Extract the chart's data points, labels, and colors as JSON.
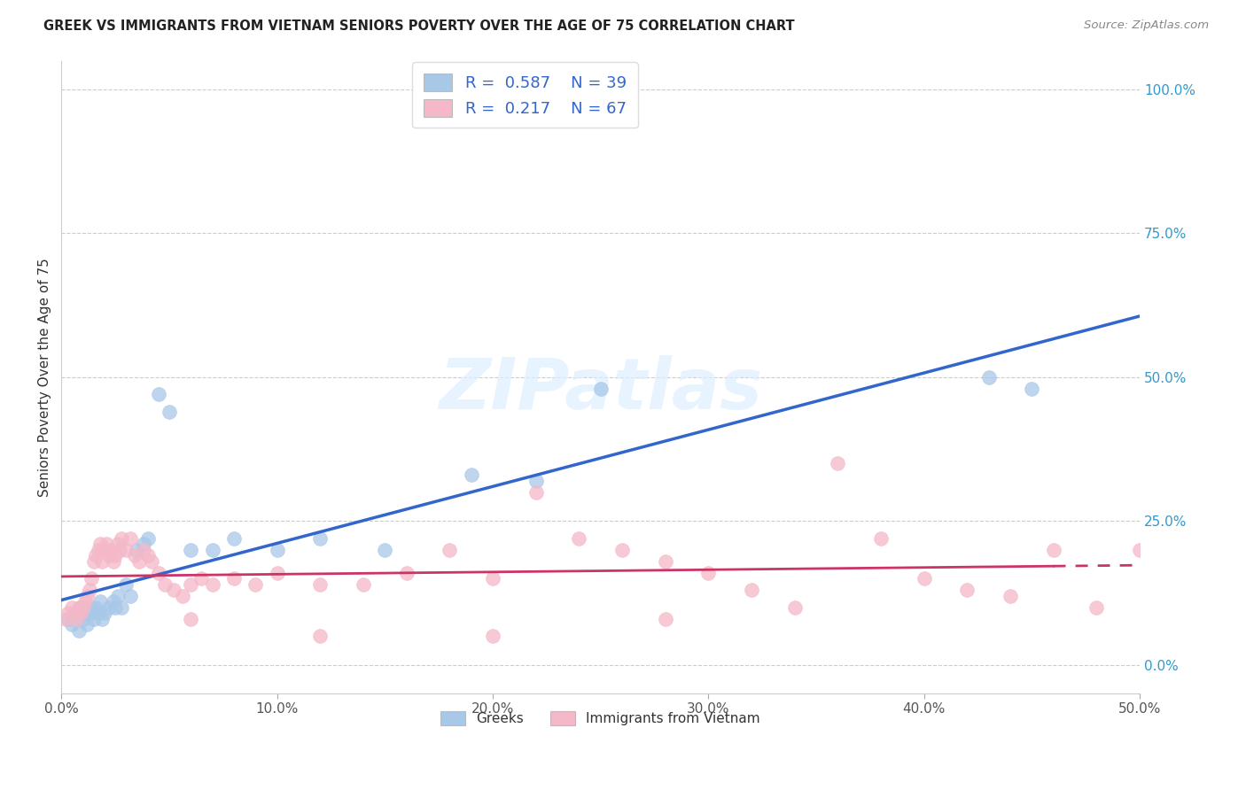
{
  "title": "GREEK VS IMMIGRANTS FROM VIETNAM SENIORS POVERTY OVER THE AGE OF 75 CORRELATION CHART",
  "source": "Source: ZipAtlas.com",
  "ylabel": "Seniors Poverty Over the Age of 75",
  "xlim": [
    0.0,
    0.5
  ],
  "ylim": [
    -0.05,
    1.05
  ],
  "ytick_vals": [
    0.0,
    0.25,
    0.5,
    0.75,
    1.0
  ],
  "xtick_vals": [
    0.0,
    0.1,
    0.2,
    0.3,
    0.4,
    0.5
  ],
  "blue_R": 0.587,
  "blue_N": 39,
  "pink_R": 0.217,
  "pink_N": 67,
  "blue_color": "#a8c8e8",
  "pink_color": "#f4b8c8",
  "blue_line_color": "#3366cc",
  "pink_line_color": "#cc3366",
  "watermark": "ZIPatlas",
  "legend_label_blue": "Greeks",
  "legend_label_pink": "Immigrants from Vietnam",
  "blue_points_x": [
    0.003,
    0.005,
    0.006,
    0.008,
    0.009,
    0.01,
    0.011,
    0.012,
    0.013,
    0.014,
    0.015,
    0.016,
    0.017,
    0.018,
    0.019,
    0.02,
    0.022,
    0.024,
    0.025,
    0.026,
    0.028,
    0.03,
    0.032,
    0.035,
    0.038,
    0.04,
    0.045,
    0.05,
    0.06,
    0.07,
    0.08,
    0.1,
    0.12,
    0.15,
    0.19,
    0.22,
    0.25,
    0.43,
    0.45
  ],
  "blue_points_y": [
    0.08,
    0.07,
    0.09,
    0.06,
    0.1,
    0.08,
    0.09,
    0.07,
    0.1,
    0.09,
    0.08,
    0.1,
    0.09,
    0.11,
    0.08,
    0.09,
    0.1,
    0.11,
    0.1,
    0.12,
    0.1,
    0.14,
    0.12,
    0.2,
    0.21,
    0.22,
    0.47,
    0.44,
    0.2,
    0.2,
    0.22,
    0.2,
    0.22,
    0.2,
    0.33,
    0.32,
    0.48,
    0.5,
    0.48
  ],
  "pink_points_x": [
    0.002,
    0.003,
    0.005,
    0.006,
    0.007,
    0.008,
    0.009,
    0.01,
    0.011,
    0.012,
    0.013,
    0.014,
    0.015,
    0.016,
    0.017,
    0.018,
    0.019,
    0.02,
    0.021,
    0.022,
    0.023,
    0.024,
    0.025,
    0.026,
    0.027,
    0.028,
    0.03,
    0.032,
    0.034,
    0.036,
    0.038,
    0.04,
    0.042,
    0.045,
    0.048,
    0.052,
    0.056,
    0.06,
    0.065,
    0.07,
    0.08,
    0.09,
    0.1,
    0.12,
    0.14,
    0.16,
    0.18,
    0.2,
    0.22,
    0.24,
    0.26,
    0.28,
    0.3,
    0.32,
    0.34,
    0.36,
    0.38,
    0.4,
    0.42,
    0.44,
    0.46,
    0.48,
    0.5,
    0.28,
    0.2,
    0.12,
    0.06
  ],
  "pink_points_y": [
    0.08,
    0.09,
    0.1,
    0.09,
    0.08,
    0.1,
    0.09,
    0.1,
    0.11,
    0.12,
    0.13,
    0.15,
    0.18,
    0.19,
    0.2,
    0.21,
    0.18,
    0.2,
    0.21,
    0.19,
    0.2,
    0.18,
    0.19,
    0.21,
    0.2,
    0.22,
    0.2,
    0.22,
    0.19,
    0.18,
    0.2,
    0.19,
    0.18,
    0.16,
    0.14,
    0.13,
    0.12,
    0.14,
    0.15,
    0.14,
    0.15,
    0.14,
    0.16,
    0.14,
    0.14,
    0.16,
    0.2,
    0.15,
    0.3,
    0.22,
    0.2,
    0.18,
    0.16,
    0.13,
    0.1,
    0.35,
    0.22,
    0.15,
    0.13,
    0.12,
    0.2,
    0.1,
    0.2,
    0.08,
    0.05,
    0.05,
    0.08
  ]
}
